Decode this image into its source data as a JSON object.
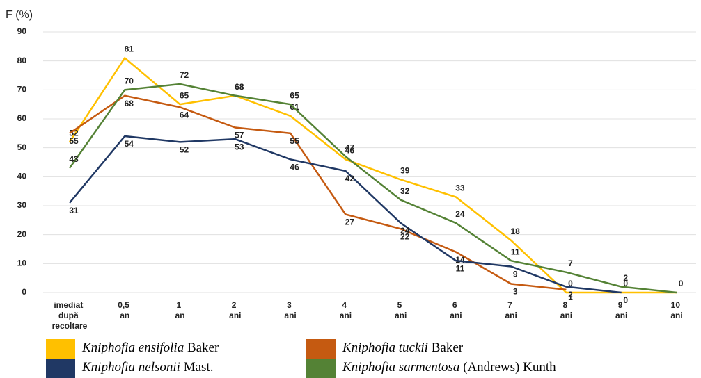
{
  "chart_data": {
    "type": "line",
    "ylabel": "F (%)",
    "categories": [
      "imediat după recoltare",
      "0,5 an",
      "1 an",
      "2 ani",
      "3 ani",
      "4 ani",
      "5 ani",
      "6 ani",
      "7 ani",
      "8 ani",
      "9 ani",
      "10 ani"
    ],
    "series": [
      {
        "name": "Kniphofia ensifolia Baker",
        "color": "#ffc000",
        "values": [
          52,
          81,
          65,
          68,
          61,
          46,
          39,
          33,
          18,
          0,
          0,
          0
        ]
      },
      {
        "name": "Kniphofia tuckii Baker",
        "color": "#c55a11",
        "values": [
          55,
          68,
          64,
          57,
          55,
          27,
          22,
          14,
          3,
          1,
          null,
          null
        ]
      },
      {
        "name": "Kniphofia nelsonii Mast.",
        "color": "#203864",
        "values": [
          31,
          54,
          52,
          53,
          46,
          42,
          24,
          11,
          9,
          2,
          0,
          null
        ]
      },
      {
        "name": "Kniphofia sarmentosa (Andrews) Kunth",
        "color": "#548235",
        "values": [
          43,
          70,
          72,
          68,
          65,
          47,
          32,
          24,
          11,
          7,
          2,
          0
        ]
      }
    ],
    "ylim": [
      0,
      90
    ],
    "yticks": [
      0,
      10,
      20,
      30,
      40,
      50,
      60,
      70,
      80,
      90
    ],
    "grid": true
  }
}
